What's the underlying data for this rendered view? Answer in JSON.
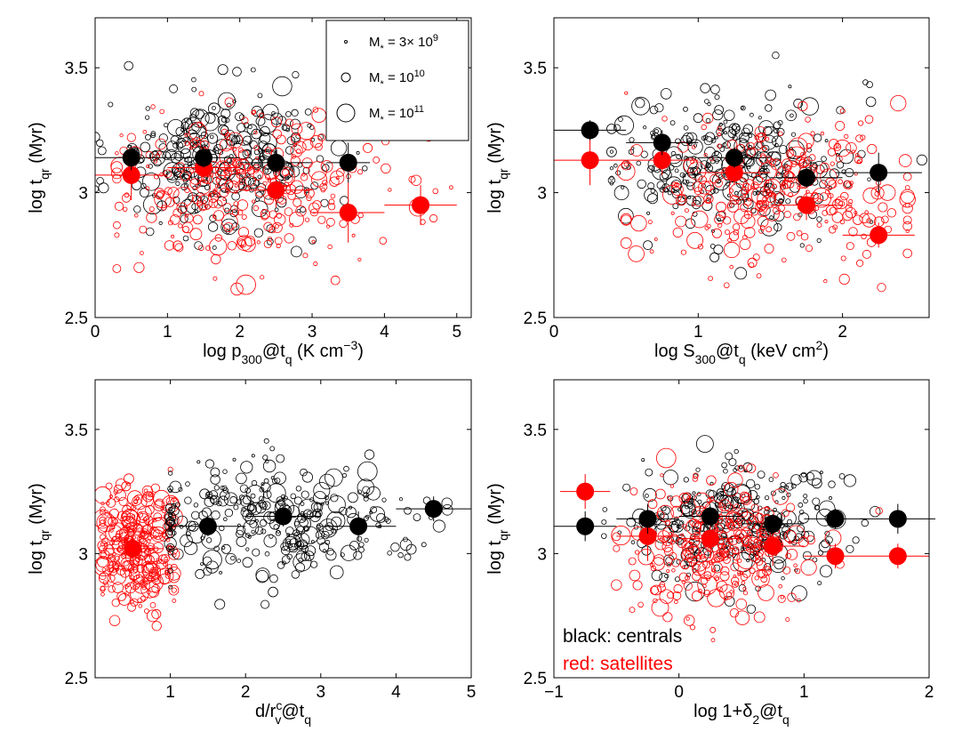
{
  "chart_data": [
    {
      "type": "scatter",
      "xlabel": {
        "base": "log p",
        "sub": "300",
        "mid": "@t",
        "sub2": "q",
        "tail": " (K cm",
        "sup": "−3",
        "end": ")"
      },
      "ylabel": {
        "base": "log t",
        "sub": "qr",
        "tail": " (Myr)"
      },
      "xlim": [
        0,
        5.2
      ],
      "ylim": [
        2.5,
        3.7
      ],
      "xticks": [
        0,
        1,
        2,
        3,
        4,
        5
      ],
      "yticks": [
        2.5,
        3,
        3.5
      ],
      "legend": {
        "placement": "top-right",
        "entries": [
          {
            "base": "M",
            "sub": "*",
            "mid": " = 3× 10",
            "sup": "9",
            "size": "small"
          },
          {
            "base": "M",
            "sub": "*",
            "mid": " = 10",
            "sup": "10",
            "size": "medium"
          },
          {
            "base": "M",
            "sub": "*",
            "mid": " = 10",
            "sup": "11",
            "size": "large"
          }
        ]
      },
      "binned_centrals": [
        {
          "x": 0.5,
          "y": 3.14,
          "xerr": 0.5,
          "yerr": 0.05
        },
        {
          "x": 1.5,
          "y": 3.14,
          "xerr": 0.5,
          "yerr": 0.04
        },
        {
          "x": 2.5,
          "y": 3.12,
          "xerr": 0.5,
          "yerr": 0.05
        },
        {
          "x": 3.5,
          "y": 3.12,
          "xerr": 0.3,
          "yerr": 0.08
        }
      ],
      "binned_satellites": [
        {
          "x": 0.5,
          "y": 3.07,
          "xerr": 0.5,
          "yerr": 0.1
        },
        {
          "x": 1.5,
          "y": 3.1,
          "xerr": 0.5,
          "yerr": 0.05
        },
        {
          "x": 2.5,
          "y": 3.01,
          "xerr": 0.5,
          "yerr": 0.07
        },
        {
          "x": 3.5,
          "y": 2.92,
          "xerr": 0.5,
          "yerr": 0.12
        },
        {
          "x": 4.5,
          "y": 2.95,
          "xerr": 0.5,
          "yerr": 0.08
        }
      ],
      "scatter_clouds": [
        {
          "color": "#000000",
          "n": 320,
          "seed": 11,
          "xmean": 1.8,
          "xsd": 0.75,
          "xmin": 0.0,
          "xmax": 4.0,
          "ymean": 3.13,
          "ysd": 0.13
        },
        {
          "color": "#ff0000",
          "n": 300,
          "seed": 12,
          "xmean": 2.0,
          "xsd": 0.95,
          "xmin": 0.3,
          "xmax": 5.0,
          "ymean": 3.03,
          "ysd": 0.15
        }
      ]
    },
    {
      "type": "scatter",
      "xlabel": {
        "base": "log S",
        "sub": "300",
        "mid": "@t",
        "sub2": "q",
        "tail": " (keV cm",
        "sup": "2",
        "end": ")"
      },
      "ylabel": {
        "base": "log t",
        "sub": "qr",
        "tail": " (Myr)"
      },
      "xlim": [
        0,
        2.6
      ],
      "ylim": [
        2.5,
        3.7
      ],
      "xticks": [
        0,
        1,
        2
      ],
      "yticks": [
        2.5,
        3,
        3.5
      ],
      "binned_centrals": [
        {
          "x": 0.25,
          "y": 3.25,
          "xerr": 0.25,
          "yerr": 0.04
        },
        {
          "x": 0.75,
          "y": 3.2,
          "xerr": 0.25,
          "yerr": 0.05
        },
        {
          "x": 1.25,
          "y": 3.14,
          "xerr": 0.25,
          "yerr": 0.04
        },
        {
          "x": 1.75,
          "y": 3.06,
          "xerr": 0.25,
          "yerr": 0.04
        },
        {
          "x": 2.25,
          "y": 3.08,
          "xerr": 0.3,
          "yerr": 0.08
        }
      ],
      "binned_satellites": [
        {
          "x": 0.25,
          "y": 3.13,
          "xerr": 0.25,
          "yerr": 0.1
        },
        {
          "x": 0.75,
          "y": 3.13,
          "xerr": 0.25,
          "yerr": 0.06
        },
        {
          "x": 1.25,
          "y": 3.08,
          "xerr": 0.25,
          "yerr": 0.05
        },
        {
          "x": 1.75,
          "y": 2.95,
          "xerr": 0.25,
          "yerr": 0.06
        },
        {
          "x": 2.25,
          "y": 2.83,
          "xerr": 0.25,
          "yerr": 0.05
        }
      ],
      "scatter_clouds": [
        {
          "color": "#000000",
          "n": 320,
          "seed": 21,
          "xmean": 1.2,
          "xsd": 0.45,
          "xmin": 0.4,
          "xmax": 2.55,
          "ymean": 3.12,
          "ysd": 0.13
        },
        {
          "color": "#ff0000",
          "n": 300,
          "seed": 22,
          "xmean": 1.55,
          "xsd": 0.45,
          "xmin": 0.5,
          "xmax": 2.45,
          "ymean": 3.0,
          "ysd": 0.14
        }
      ]
    },
    {
      "type": "scatter",
      "xlabel": {
        "base": "d/r",
        "sub": "v",
        "sup": "c",
        "mid": "@t",
        "sub2": "q"
      },
      "ylabel": {
        "base": "log t",
        "sub": "qr",
        "tail": " (Myr)"
      },
      "xlim": [
        0,
        5
      ],
      "ylim": [
        2.5,
        3.7
      ],
      "xticks": [
        1,
        2,
        3,
        4,
        5
      ],
      "yticks": [
        2.5,
        3,
        3.5
      ],
      "binned_centrals": [
        {
          "x": 1.5,
          "y": 3.11,
          "xerr": 0.5,
          "yerr": 0.04
        },
        {
          "x": 2.5,
          "y": 3.15,
          "xerr": 0.5,
          "yerr": 0.04
        },
        {
          "x": 3.5,
          "y": 3.11,
          "xerr": 0.5,
          "yerr": 0.06
        },
        {
          "x": 4.5,
          "y": 3.18,
          "xerr": 0.5,
          "yerr": 0.05
        }
      ],
      "binned_satellites": [
        {
          "x": 0.5,
          "y": 3.02,
          "xerr": 0.4,
          "yerr": 0.05
        }
      ],
      "scatter_clouds": [
        {
          "color": "#ff0000",
          "n": 300,
          "seed": 31,
          "xmean": 0.55,
          "xsd": 0.28,
          "xmin": 0.1,
          "xmax": 1.05,
          "ymean": 3.02,
          "ysd": 0.13
        },
        {
          "color": "#000000",
          "n": 320,
          "seed": 32,
          "xmean": 2.3,
          "xsd": 0.95,
          "xmin": 1.0,
          "xmax": 4.95,
          "ymean": 3.13,
          "ysd": 0.12
        }
      ]
    },
    {
      "type": "scatter",
      "xlabel": {
        "base": "log 1+δ",
        "sub": "2",
        "mid": "@t",
        "sub2": "q"
      },
      "ylabel": {
        "base": "log t",
        "sub": "qr",
        "tail": " (Myr)"
      },
      "xlim": [
        -1,
        2
      ],
      "ylim": [
        2.5,
        3.7
      ],
      "xticks": [
        -1,
        0,
        1,
        2
      ],
      "yticks": [
        2.5,
        3,
        3.5
      ],
      "text_legend": {
        "placement": "bottom-left",
        "entries": [
          {
            "text": "black: centrals",
            "color": "#000000"
          },
          {
            "text": "red: satellites",
            "color": "#ff0000"
          }
        ]
      },
      "binned_centrals": [
        {
          "x": -0.75,
          "y": 3.11,
          "xerr": 0.25,
          "yerr": 0.06
        },
        {
          "x": -0.25,
          "y": 3.14,
          "xerr": 0.25,
          "yerr": 0.06
        },
        {
          "x": 0.25,
          "y": 3.15,
          "xerr": 0.25,
          "yerr": 0.04
        },
        {
          "x": 0.75,
          "y": 3.12,
          "xerr": 0.25,
          "yerr": 0.04
        },
        {
          "x": 1.25,
          "y": 3.14,
          "xerr": 0.25,
          "yerr": 0.04
        },
        {
          "x": 1.75,
          "y": 3.14,
          "xerr": 0.3,
          "yerr": 0.06
        }
      ],
      "binned_satellites": [
        {
          "x": -0.75,
          "y": 3.25,
          "xerr": 0.2,
          "yerr": 0.07
        },
        {
          "x": -0.25,
          "y": 3.07,
          "xerr": 0.25,
          "yerr": 0.1
        },
        {
          "x": 0.25,
          "y": 3.06,
          "xerr": 0.25,
          "yerr": 0.08
        },
        {
          "x": 0.75,
          "y": 3.03,
          "xerr": 0.25,
          "yerr": 0.08
        },
        {
          "x": 1.25,
          "y": 2.99,
          "xerr": 0.25,
          "yerr": 0.05
        },
        {
          "x": 1.75,
          "y": 2.99,
          "xerr": 0.25,
          "yerr": 0.05
        }
      ],
      "scatter_clouds": [
        {
          "color": "#000000",
          "n": 320,
          "seed": 41,
          "xmean": 0.45,
          "xsd": 0.45,
          "xmin": -0.6,
          "xmax": 1.9,
          "ymean": 3.12,
          "ysd": 0.12
        },
        {
          "color": "#ff0000",
          "n": 300,
          "seed": 42,
          "xmean": 0.35,
          "xsd": 0.38,
          "xmin": -0.5,
          "xmax": 1.6,
          "ymean": 3.02,
          "ysd": 0.14
        }
      ]
    }
  ]
}
